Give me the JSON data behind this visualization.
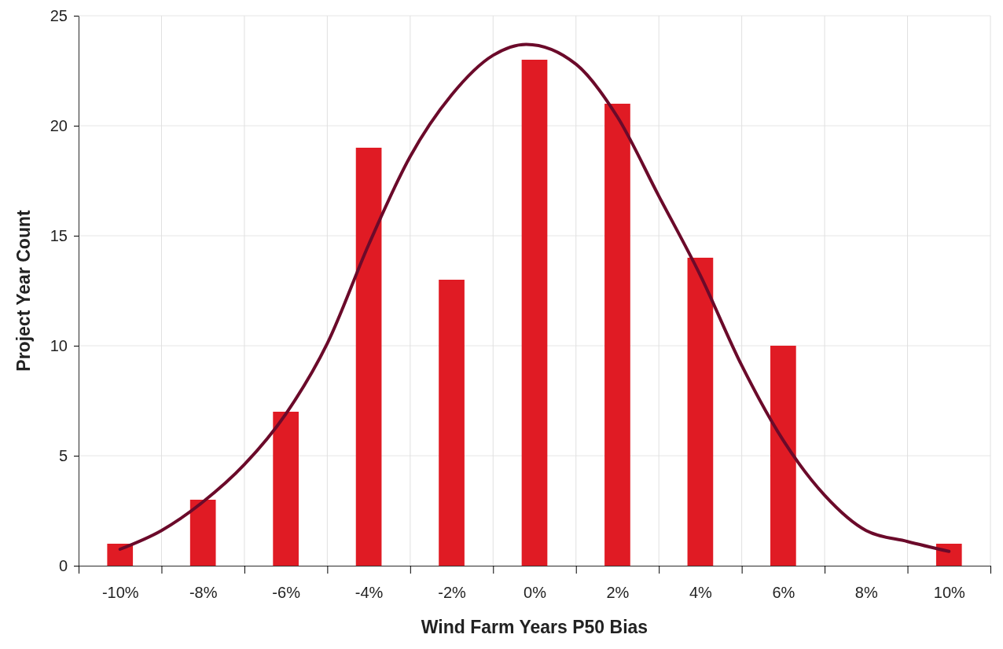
{
  "chart_data": {
    "type": "bar",
    "xlabel": "Wind Farm Years P50 Bias",
    "ylabel": "Project Year Count",
    "x": [
      -10,
      -8,
      -6,
      -4,
      -2,
      0,
      2,
      4,
      6,
      8,
      10
    ],
    "series": [
      {
        "color": "#e01b24",
        "values": [
          1,
          3,
          7,
          19,
          13,
          23,
          21,
          14,
          10,
          0,
          1
        ]
      },
      {
        "type": "line",
        "color": "#6b0a2a",
        "x": [
          -10,
          -9,
          -8,
          -7,
          -6,
          -5,
          -4,
          -3,
          -2,
          -1,
          -0.2,
          1,
          2,
          3,
          4,
          5,
          6,
          7,
          8,
          9,
          10
        ],
        "values": [
          0.75,
          1.6,
          2.9,
          4.6,
          6.9,
          10.1,
          14.6,
          18.6,
          21.4,
          23.2,
          23.7,
          22.8,
          20.4,
          16.8,
          13.2,
          9.1,
          5.7,
          3.2,
          1.6,
          1.1,
          0.65
        ]
      }
    ],
    "xlim": [
      -11,
      11
    ],
    "xticks": [
      {
        "value": -11,
        "label": null
      },
      {
        "value": -10,
        "label": "-10%"
      },
      {
        "value": -9,
        "label": null
      },
      {
        "value": -8,
        "label": "-8%"
      },
      {
        "value": -7,
        "label": null
      },
      {
        "value": -6,
        "label": "-6%"
      },
      {
        "value": -5,
        "label": null
      },
      {
        "value": -4,
        "label": "-4%"
      },
      {
        "value": -3,
        "label": null
      },
      {
        "value": -2,
        "label": "-2%"
      },
      {
        "value": -1,
        "label": null
      },
      {
        "value": 0,
        "label": "0%"
      },
      {
        "value": 1,
        "label": null
      },
      {
        "value": 2,
        "label": "2%"
      },
      {
        "value": 3,
        "label": null
      },
      {
        "value": 4,
        "label": "4%"
      },
      {
        "value": 5,
        "label": null
      },
      {
        "value": 6,
        "label": "6%"
      },
      {
        "value": 7,
        "label": null
      },
      {
        "value": 8,
        "label": "8%"
      },
      {
        "value": 9,
        "label": null
      },
      {
        "value": 10,
        "label": "10%"
      },
      {
        "value": 11,
        "label": null
      }
    ],
    "ylim": [
      0,
      25
    ],
    "yticks": [
      0,
      5,
      10,
      15,
      20,
      25
    ],
    "grid": true,
    "marker": "none",
    "line_style": "solid"
  }
}
